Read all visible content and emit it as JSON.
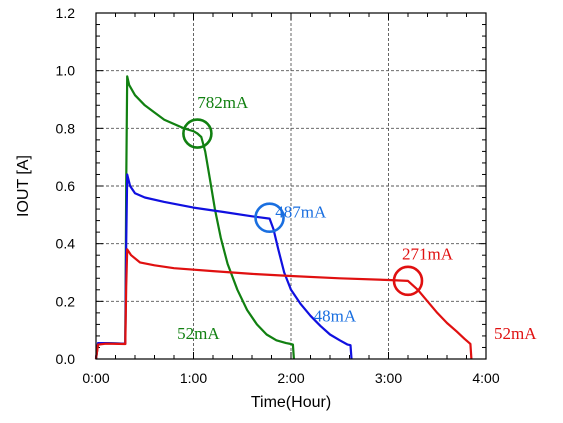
{
  "chart_data": {
    "type": "line",
    "title": "",
    "xlabel": "Time(Hour)",
    "ylabel": "IOUT [A]",
    "xlim": [
      0,
      4
    ],
    "ylim": [
      0,
      1.2
    ],
    "x_ticks": [
      0,
      1,
      2,
      3,
      4
    ],
    "x_tick_labels": [
      "0:00",
      "1:00",
      "2:00",
      "3:00",
      "4:00"
    ],
    "y_ticks": [
      0,
      0.2,
      0.4,
      0.6,
      0.8,
      1.0,
      1.2
    ],
    "y_tick_labels": [
      "0.0",
      "0.2",
      "0.4",
      "0.6",
      "0.8",
      "1.0",
      "1.2"
    ],
    "grid": true,
    "series": [
      {
        "color": "#118011",
        "points": [
          [
            0,
            0.0
          ],
          [
            0.02,
            0.05
          ],
          [
            0.1,
            0.055
          ],
          [
            0.3,
            0.053
          ],
          [
            0.31,
            0.6
          ],
          [
            0.32,
            0.98
          ],
          [
            0.34,
            0.95
          ],
          [
            0.4,
            0.915
          ],
          [
            0.5,
            0.88
          ],
          [
            0.6,
            0.855
          ],
          [
            0.7,
            0.83
          ],
          [
            0.8,
            0.815
          ],
          [
            0.9,
            0.8
          ],
          [
            1.0,
            0.79
          ],
          [
            1.04,
            0.782
          ],
          [
            1.08,
            0.77
          ],
          [
            1.12,
            0.72
          ],
          [
            1.17,
            0.62
          ],
          [
            1.22,
            0.52
          ],
          [
            1.28,
            0.42
          ],
          [
            1.35,
            0.33
          ],
          [
            1.45,
            0.24
          ],
          [
            1.55,
            0.17
          ],
          [
            1.65,
            0.12
          ],
          [
            1.75,
            0.085
          ],
          [
            1.85,
            0.065
          ],
          [
            1.95,
            0.055
          ],
          [
            2.0,
            0.052
          ],
          [
            2.02,
            0.05
          ],
          [
            2.03,
            0.0
          ]
        ]
      },
      {
        "color": "#1010e0",
        "points": [
          [
            0,
            0.0
          ],
          [
            0.02,
            0.055
          ],
          [
            0.1,
            0.055
          ],
          [
            0.3,
            0.053
          ],
          [
            0.31,
            0.4
          ],
          [
            0.32,
            0.64
          ],
          [
            0.35,
            0.6
          ],
          [
            0.4,
            0.575
          ],
          [
            0.5,
            0.56
          ],
          [
            0.7,
            0.545
          ],
          [
            1.0,
            0.525
          ],
          [
            1.3,
            0.51
          ],
          [
            1.6,
            0.495
          ],
          [
            1.78,
            0.487
          ],
          [
            1.82,
            0.45
          ],
          [
            1.87,
            0.38
          ],
          [
            1.93,
            0.3
          ],
          [
            2.0,
            0.24
          ],
          [
            2.1,
            0.19
          ],
          [
            2.2,
            0.15
          ],
          [
            2.3,
            0.115
          ],
          [
            2.4,
            0.085
          ],
          [
            2.5,
            0.065
          ],
          [
            2.58,
            0.05
          ],
          [
            2.61,
            0.048
          ],
          [
            2.62,
            0.0
          ]
        ]
      },
      {
        "color": "#e01010",
        "points": [
          [
            0,
            0.0
          ],
          [
            0.02,
            0.05
          ],
          [
            0.1,
            0.053
          ],
          [
            0.3,
            0.052
          ],
          [
            0.31,
            0.25
          ],
          [
            0.32,
            0.38
          ],
          [
            0.36,
            0.36
          ],
          [
            0.45,
            0.335
          ],
          [
            0.6,
            0.325
          ],
          [
            0.8,
            0.315
          ],
          [
            1.2,
            0.305
          ],
          [
            1.6,
            0.295
          ],
          [
            2.0,
            0.288
          ],
          [
            2.5,
            0.28
          ],
          [
            3.0,
            0.274
          ],
          [
            3.2,
            0.271
          ],
          [
            3.3,
            0.24
          ],
          [
            3.4,
            0.2
          ],
          [
            3.5,
            0.16
          ],
          [
            3.6,
            0.125
          ],
          [
            3.7,
            0.095
          ],
          [
            3.78,
            0.07
          ],
          [
            3.83,
            0.055
          ],
          [
            3.84,
            0.052
          ],
          [
            3.85,
            0.0
          ]
        ]
      }
    ],
    "annotations": [
      {
        "text": "782mA",
        "color": "#118011",
        "x": 1.3,
        "y": 0.87,
        "cx": 1.04,
        "cy": 0.782
      },
      {
        "text": "487mA",
        "color": "#1a6fe0",
        "x": 2.1,
        "y": 0.49,
        "cx": 1.78,
        "cy": 0.49
      },
      {
        "text": "271mA",
        "color": "#e01010",
        "x": 3.4,
        "y": 0.345,
        "cx": 3.2,
        "cy": 0.271
      },
      {
        "text": "52mA",
        "color": "#118011",
        "x": 1.05,
        "y": 0.07,
        "cx": null,
        "cy": null
      },
      {
        "text": "48mA",
        "color": "#1a6fe0",
        "x": 2.45,
        "y": 0.13,
        "cx": null,
        "cy": null
      },
      {
        "text": "52mA",
        "color": "#e01010",
        "x": 4.3,
        "y": 0.07,
        "cx": null,
        "cy": null
      }
    ]
  }
}
